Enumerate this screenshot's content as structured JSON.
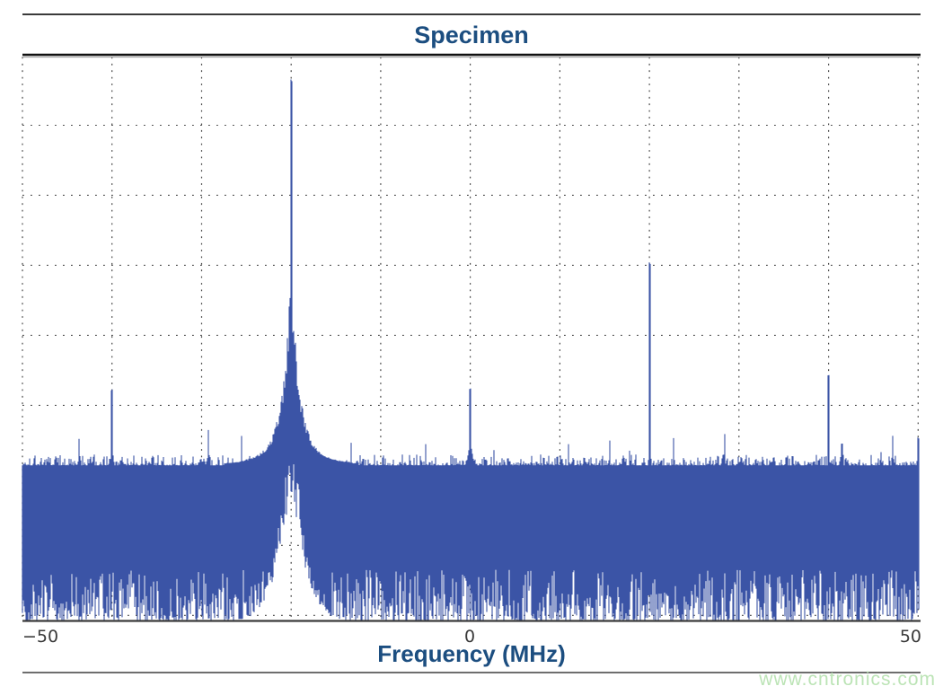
{
  "page": {
    "watermark": "www.cntronics.com"
  },
  "chart_data": {
    "type": "line",
    "title": "Specimen",
    "xlabel": "Frequency (MHz)",
    "ylabel": "",
    "xlim": [
      -50,
      50
    ],
    "x_tick_values": [
      -50,
      0,
      50
    ],
    "x_tick_labels": [
      "−50",
      "0",
      "50"
    ],
    "x_gridline_step_mhz": 10,
    "y_axis": "unlabeled relative amplitude (0 = bottom axis, 1 = top border)",
    "y_gridlines": 8,
    "grid": "dotted",
    "legend": "none",
    "colors": {
      "trace": "#3b54a6",
      "title": "#1c4e80",
      "axis_label": "#1c4e80",
      "tick_label": "#3a3a3a",
      "plot_border": "#111111",
      "gridline": "#454545",
      "watermark": "#bce4b6"
    },
    "noise_floor_level": 0.275,
    "noise_band": "dense noise fills from the floor down to the bottom axis with ragged lower envelope",
    "peaks": [
      {
        "freq_mhz": -40,
        "level": 0.41,
        "kind": "spur"
      },
      {
        "freq_mhz": -20,
        "level": 0.958,
        "kind": "carrier",
        "skirt": true
      },
      {
        "freq_mhz": 0,
        "level": 0.412,
        "kind": "spur",
        "small_base_bump": true
      },
      {
        "freq_mhz": 20,
        "level": 0.634,
        "kind": "spur"
      },
      {
        "freq_mhz": 40,
        "level": 0.436,
        "kind": "spur"
      },
      {
        "freq_mhz": 41.5,
        "level": 0.315,
        "kind": "spur"
      },
      {
        "freq_mhz": 50,
        "level": 0.325,
        "kind": "spur-at-right-edge"
      }
    ]
  }
}
